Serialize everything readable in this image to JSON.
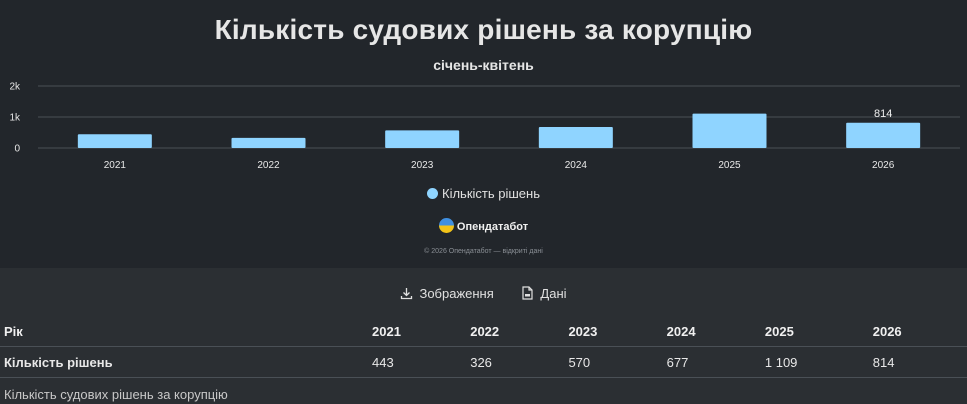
{
  "chart_data": {
    "type": "bar",
    "title": "Кількість судових рішень за корупцію",
    "subtitle": "січень-квітень",
    "categories": [
      "2021",
      "2022",
      "2023",
      "2024",
      "2025",
      "2026"
    ],
    "series": [
      {
        "name": "Кількість рішень",
        "values": [
          443,
          326,
          570,
          677,
          1109,
          814
        ],
        "color": "#8fd4ff"
      }
    ],
    "y_ticks": [
      "0",
      "1k",
      "2k"
    ],
    "ylim": [
      0,
      2000
    ],
    "data_labels": {
      "2026": "814"
    },
    "grid": true,
    "legend_position": "bottom"
  },
  "branding": {
    "name": "Опендатабот",
    "copyright": "© 2026 Опендатабот — відкриті дані"
  },
  "actions": {
    "image_label": "Зображення",
    "data_label": "Дані"
  },
  "table": {
    "header_label": "Рік",
    "row_label": "Кількість рішень",
    "years": [
      "2021",
      "2022",
      "2023",
      "2024",
      "2025",
      "2026"
    ],
    "values": [
      "443",
      "326",
      "570",
      "677",
      "1 109",
      "814"
    ]
  },
  "caption": "Кількість судових рішень за корупцію"
}
